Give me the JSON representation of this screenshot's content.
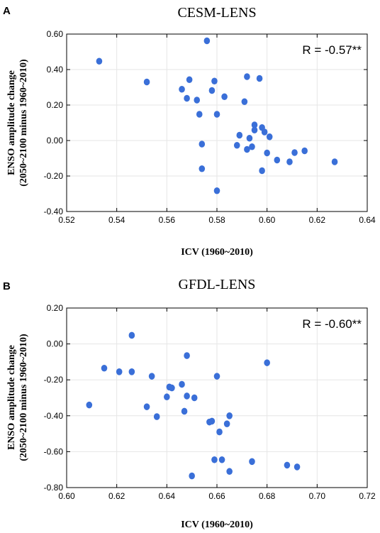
{
  "chart_data": [
    {
      "type": "scatter",
      "panel": "A",
      "title": "CESM-LENS",
      "xlabel": "ICV (1960~2010)",
      "ylabel": [
        "ENSO amplitude change",
        "(2050~2100  minus 1960~2010)"
      ],
      "annotation": "R = -0.57**",
      "xlim": [
        0.52,
        0.64
      ],
      "ylim": [
        -0.4,
        0.6
      ],
      "xticks": [
        0.52,
        0.54,
        0.56,
        0.58,
        0.6,
        0.62,
        0.64
      ],
      "xtick_labels": [
        "0.52",
        "0.54",
        "0.56",
        "0.58",
        "0.60",
        "0.62",
        "0.64"
      ],
      "yticks": [
        -0.4,
        -0.2,
        0.0,
        0.2,
        0.4,
        0.6
      ],
      "ytick_labels": [
        "-0.40",
        "-0.20",
        "0.00",
        "0.20",
        "0.40",
        "0.60"
      ],
      "grid": true,
      "color": "#3a6fd8",
      "points": [
        [
          0.533,
          0.447
        ],
        [
          0.552,
          0.33
        ],
        [
          0.566,
          0.289
        ],
        [
          0.568,
          0.238
        ],
        [
          0.569,
          0.343
        ],
        [
          0.572,
          0.228
        ],
        [
          0.573,
          0.148
        ],
        [
          0.574,
          -0.02
        ],
        [
          0.574,
          -0.159
        ],
        [
          0.576,
          0.562
        ],
        [
          0.578,
          0.282
        ],
        [
          0.579,
          0.335
        ],
        [
          0.58,
          0.148
        ],
        [
          0.58,
          -0.283
        ],
        [
          0.583,
          0.247
        ],
        [
          0.588,
          -0.027
        ],
        [
          0.589,
          0.03
        ],
        [
          0.591,
          0.219
        ],
        [
          0.592,
          -0.05
        ],
        [
          0.592,
          0.36
        ],
        [
          0.593,
          0.013
        ],
        [
          0.594,
          -0.035
        ],
        [
          0.595,
          0.059
        ],
        [
          0.595,
          0.088
        ],
        [
          0.597,
          0.35
        ],
        [
          0.598,
          0.073
        ],
        [
          0.598,
          -0.17
        ],
        [
          0.599,
          0.048
        ],
        [
          0.6,
          -0.07
        ],
        [
          0.601,
          0.021
        ],
        [
          0.604,
          -0.11
        ],
        [
          0.609,
          -0.12
        ],
        [
          0.611,
          -0.068
        ],
        [
          0.615,
          -0.058
        ],
        [
          0.627,
          -0.12
        ]
      ]
    },
    {
      "type": "scatter",
      "panel": "B",
      "title": "GFDL-LENS",
      "xlabel": "ICV (1960~2010)",
      "ylabel": [
        "ENSO amplitude change",
        "(2050~2100  minus 1960~2010)"
      ],
      "annotation": "R = -0.60**",
      "xlim": [
        0.6,
        0.72
      ],
      "ylim": [
        -0.8,
        0.2
      ],
      "xticks": [
        0.6,
        0.62,
        0.64,
        0.66,
        0.68,
        0.7,
        0.72
      ],
      "xtick_labels": [
        "0.60",
        "0.62",
        "0.64",
        "0.66",
        "0.68",
        "0.70",
        "0.72"
      ],
      "yticks": [
        -0.8,
        -0.6,
        -0.4,
        -0.2,
        0.0,
        0.2
      ],
      "ytick_labels": [
        "-0.80",
        "-0.60",
        "-0.40",
        "-0.20",
        "0.00",
        "0.20"
      ],
      "grid": true,
      "color": "#3a6fd8",
      "points": [
        [
          0.609,
          -0.34
        ],
        [
          0.615,
          -0.135
        ],
        [
          0.621,
          -0.155
        ],
        [
          0.626,
          -0.155
        ],
        [
          0.626,
          0.048
        ],
        [
          0.632,
          -0.35
        ],
        [
          0.634,
          -0.18
        ],
        [
          0.636,
          -0.405
        ],
        [
          0.64,
          -0.295
        ],
        [
          0.641,
          -0.24
        ],
        [
          0.642,
          -0.245
        ],
        [
          0.646,
          -0.225
        ],
        [
          0.647,
          -0.375
        ],
        [
          0.648,
          -0.065
        ],
        [
          0.648,
          -0.29
        ],
        [
          0.65,
          -0.735
        ],
        [
          0.651,
          -0.3
        ],
        [
          0.657,
          -0.435
        ],
        [
          0.658,
          -0.43
        ],
        [
          0.659,
          -0.645
        ],
        [
          0.66,
          -0.18
        ],
        [
          0.661,
          -0.49
        ],
        [
          0.662,
          -0.645
        ],
        [
          0.664,
          -0.445
        ],
        [
          0.665,
          -0.4
        ],
        [
          0.665,
          -0.71
        ],
        [
          0.674,
          -0.655
        ],
        [
          0.68,
          -0.105
        ],
        [
          0.688,
          -0.675
        ],
        [
          0.692,
          -0.685
        ]
      ]
    }
  ]
}
